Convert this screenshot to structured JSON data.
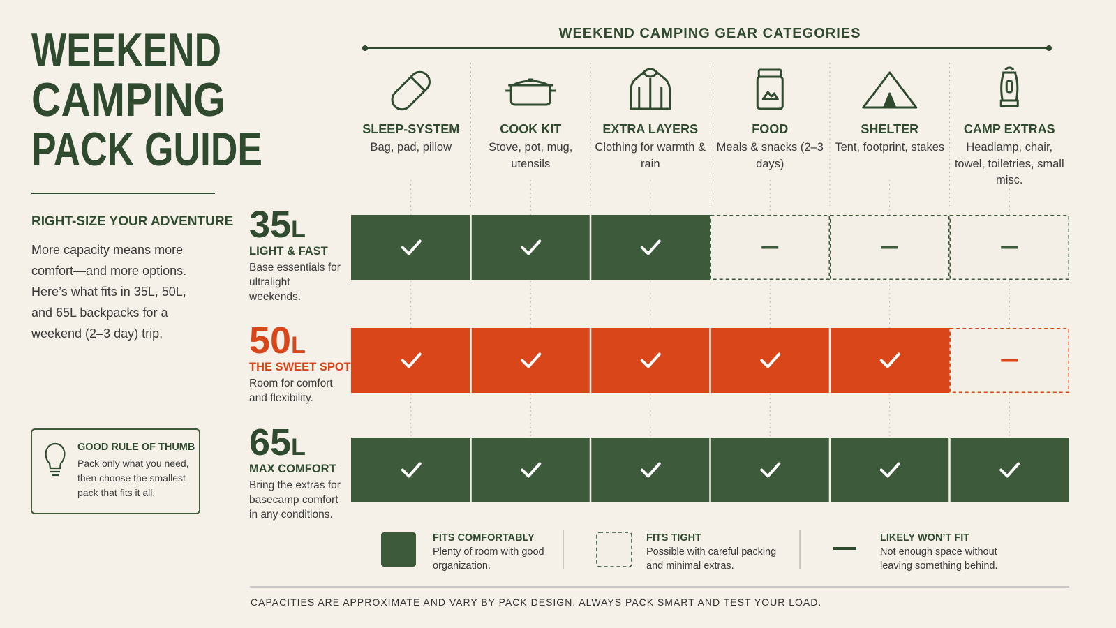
{
  "header": {
    "title_lines": [
      "WEEKEND",
      "CAMPING",
      "PACK GUIDE"
    ]
  },
  "intro": {
    "heading": "RIGHT-SIZE YOUR ADVENTURE",
    "body": "More capacity means more comfort—and more options. Here’s what fits in 35L, 50L, and 65L backpacks for a weekend (2–3 day) trip."
  },
  "tip": {
    "title": "GOOD RULE OF THUMB",
    "body": "Pack only what you need, then choose the smallest pack that fits it all."
  },
  "categories": {
    "title": "WEEKEND CAMPING GEAR CATEGORIES",
    "items": [
      {
        "name": "SLEEP-SYSTEM",
        "desc": "Bag, pad, pillow"
      },
      {
        "name": "COOK KIT",
        "desc": "Stove, pot, mug, utensils"
      },
      {
        "name": "EXTRA LAYERS",
        "desc": "Clothing for warmth & rain"
      },
      {
        "name": "FOOD",
        "desc": "Meals & snacks (2–3 days)"
      },
      {
        "name": "SHELTER",
        "desc": "Tent, footprint, stakes"
      },
      {
        "name": "CAMP EXTRAS",
        "desc": "Headlamp, chair, towel, toiletries, small misc."
      }
    ]
  },
  "packs": [
    {
      "capacity": "35",
      "unit": "L",
      "tagline": "LIGHT & FAST",
      "desc": "Base essentials for ultralight weekends.",
      "color": "#3d5a3b",
      "label_color": "#2f4a2f",
      "cells": [
        "fit",
        "fit",
        "fit",
        "wont",
        "wont",
        "wont"
      ]
    },
    {
      "capacity": "50",
      "unit": "L",
      "tagline": "THE SWEET SPOT",
      "desc": "Room for comfort and flexibility.",
      "color": "#d9461a",
      "label_color": "#d9461a",
      "cells": [
        "fit",
        "fit",
        "fit",
        "fit",
        "fit",
        "wont"
      ]
    },
    {
      "capacity": "65",
      "unit": "L",
      "tagline": "MAX COMFORT",
      "desc": "Bring the extras for basecamp comfort in any conditions.",
      "color": "#3d5a3b",
      "label_color": "#2f4a2f",
      "cells": [
        "fit",
        "fit",
        "fit",
        "fit",
        "fit",
        "fit"
      ]
    }
  ],
  "legend": [
    {
      "title": "FITS COMFORTABLY",
      "desc": "Plenty of room with good organization."
    },
    {
      "title": "FITS TIGHT",
      "desc": "Possible with careful packing and minimal extras."
    },
    {
      "title": "LIKELY WON’T FIT",
      "desc": "Not enough space without leaving something behind."
    }
  ],
  "footnote": "CAPACITIES ARE APPROXIMATE AND VARY BY PACK DESIGN. ALWAYS PACK SMART AND TEST YOUR LOAD."
}
